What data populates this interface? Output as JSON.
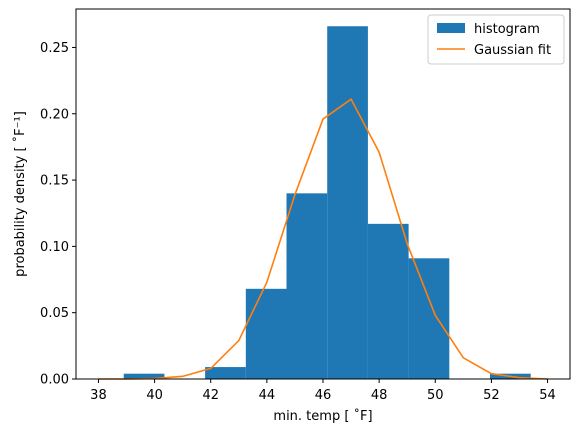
{
  "chart_data": {
    "type": "bar",
    "xlabel": "min. temp [$^\\circ$F]",
    "xlabel_display": "min. temp [ ˚F]",
    "ylabel_display": "probability density [ ˚F⁻¹]",
    "xlim": [
      37.2,
      54.8
    ],
    "ylim": [
      0,
      0.279
    ],
    "x_ticks": [
      38,
      40,
      42,
      44,
      46,
      48,
      50,
      52,
      54
    ],
    "x_tick_labels": [
      "38",
      "40",
      "42",
      "44",
      "46",
      "48",
      "50",
      "52",
      "54"
    ],
    "y_ticks": [
      0.0,
      0.05,
      0.1,
      0.15,
      0.2,
      0.25
    ],
    "y_tick_labels": [
      "0.00",
      "0.05",
      "0.10",
      "0.15",
      "0.20",
      "0.25"
    ],
    "grid": false,
    "legend_position": "top-right",
    "histogram": {
      "name": "histogram",
      "color": "#1f77b4",
      "bins": [
        {
          "x0": 38.9,
          "x1": 40.35,
          "value": 0.004
        },
        {
          "x0": 40.35,
          "x1": 41.8,
          "value": 0.0
        },
        {
          "x0": 41.8,
          "x1": 43.25,
          "value": 0.009
        },
        {
          "x0": 43.25,
          "x1": 44.7,
          "value": 0.068
        },
        {
          "x0": 44.7,
          "x1": 46.15,
          "value": 0.14
        },
        {
          "x0": 46.15,
          "x1": 47.6,
          "value": 0.266
        },
        {
          "x0": 47.6,
          "x1": 49.05,
          "value": 0.117
        },
        {
          "x0": 49.05,
          "x1": 50.5,
          "value": 0.091
        },
        {
          "x0": 50.5,
          "x1": 51.95,
          "value": 0.0
        },
        {
          "x0": 51.95,
          "x1": 53.4,
          "value": 0.004
        }
      ]
    },
    "fit": {
      "name": "Gaussian fit",
      "color": "#ff7f0e",
      "x": [
        38,
        39,
        40,
        41,
        42,
        43,
        44,
        45,
        46,
        47,
        48,
        49,
        50,
        51,
        52,
        53,
        54
      ],
      "y": [
        0.0,
        0.0,
        0.0003,
        0.002,
        0.008,
        0.029,
        0.073,
        0.139,
        0.196,
        0.211,
        0.171,
        0.102,
        0.048,
        0.016,
        0.004,
        0.001,
        0.0
      ]
    }
  }
}
